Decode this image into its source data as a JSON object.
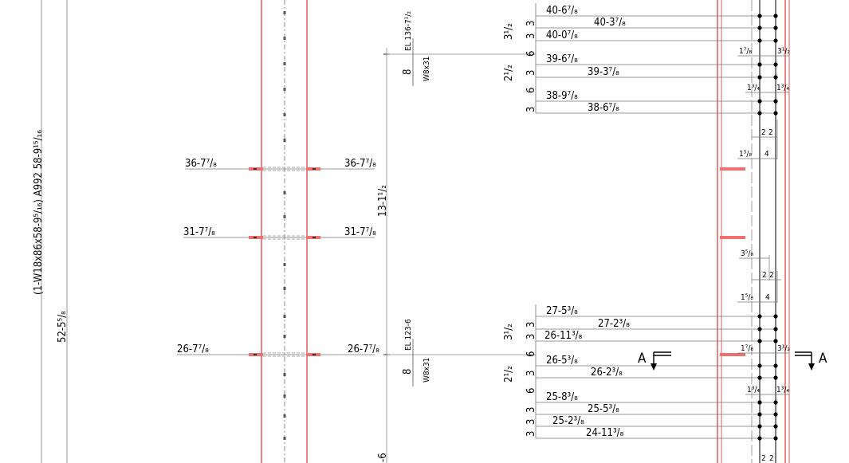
{
  "member": {
    "callout": "(1-W18x86x58-9⁵/₁₆)  A992  58-9¹⁵/₁₆",
    "length": "52-5⁵/₈",
    "overall_dim": "13-1¹/₂",
    "bottom_dim": "-6"
  },
  "holes_left": [
    {
      "id": "top",
      "left": "36-7⁷/₈",
      "right": "36-7⁷/₈"
    },
    {
      "id": "mid",
      "left": "31-7⁷/₈",
      "right": "31-7⁷/₈"
    },
    {
      "id": "low",
      "left": "26-7⁷/₈",
      "right": "26-7⁷/₈"
    }
  ],
  "beam_upper": {
    "elevation": "EL 136-7¹/₂",
    "size": "W8x31",
    "depth": "8"
  },
  "beam_lower": {
    "elevation": "EL 123-6",
    "size": "W8x31",
    "depth": "8"
  },
  "upper_connection": {
    "rows": [
      {
        "label": "40-6⁷/₈"
      },
      {
        "label": "40-3⁷/₈"
      },
      {
        "label": "40-0⁷/₈"
      },
      {
        "label": "39-6⁷/₈"
      },
      {
        "label": "39-3⁷/₈"
      },
      {
        "label": "38-9⁷/₈"
      },
      {
        "label": "38-6⁷/₈"
      }
    ],
    "spacings": [
      "3",
      "3",
      "6",
      "3",
      "6",
      "3"
    ],
    "group_dims": [
      "3¹/₂",
      "2¹/₂"
    ],
    "edge_dims": [
      "1⁷/₈",
      "3¹/₂",
      "1³/₄",
      "1³/₄",
      "2",
      "2",
      "1⁵/₈",
      "4"
    ]
  },
  "lower_connection": {
    "rows": [
      {
        "label": "27-5³/₈"
      },
      {
        "label": "27-2³/₈"
      },
      {
        "label": "26-11³/₈"
      },
      {
        "label": "26-5³/₈"
      },
      {
        "label": "26-2³/₈"
      },
      {
        "label": "25-8³/₈"
      },
      {
        "label": "25-5³/₈"
      },
      {
        "label": "25-2³/₈"
      },
      {
        "label": "24-11³/₈"
      }
    ],
    "spacings": [
      "3",
      "3",
      "6",
      "3",
      "6",
      "3",
      "3",
      "3"
    ],
    "group_dims": [
      "3¹/₂",
      "2¹/₂"
    ],
    "edge_dims": [
      "3⁵/₈",
      "2",
      "2",
      "1⁵/₈",
      "4",
      "1⁷/₈",
      "3¹/₂",
      "1³/₄",
      "1³/₄",
      "2",
      "2"
    ]
  },
  "section_marks": [
    {
      "id": "left",
      "letter": "A"
    },
    {
      "id": "right",
      "letter": "A"
    }
  ]
}
